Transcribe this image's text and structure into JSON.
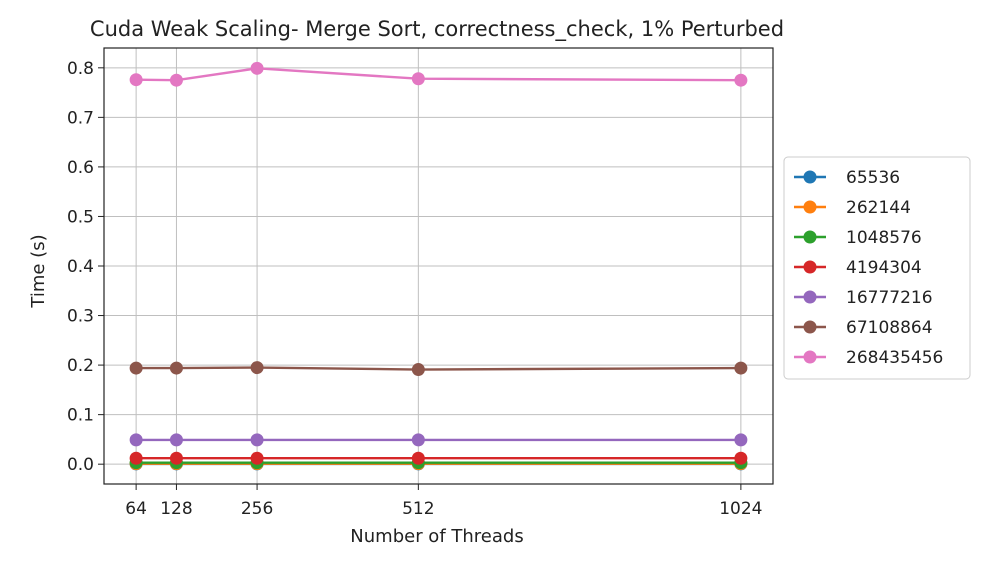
{
  "chart_data": {
    "type": "line",
    "title": "Cuda Weak Scaling- Merge Sort, correctness_check, 1% Perturbed",
    "xlabel": "Number of Threads",
    "ylabel": "Time (s)",
    "x": [
      64,
      128,
      256,
      512,
      1024
    ],
    "x_tick_labels": [
      "64",
      "128",
      "256",
      "512",
      "1024"
    ],
    "xlim": [
      13,
      1075
    ],
    "ylim": [
      -0.04,
      0.84
    ],
    "y_ticks": [
      0.0,
      0.1,
      0.2,
      0.3,
      0.4,
      0.5,
      0.6,
      0.7,
      0.8
    ],
    "y_tick_labels": [
      "0.0",
      "0.1",
      "0.2",
      "0.3",
      "0.4",
      "0.5",
      "0.6",
      "0.7",
      "0.8"
    ],
    "grid": true,
    "legend_position": "right",
    "series": [
      {
        "name": "65536",
        "color": "#1f77b4",
        "values": [
          0.0006,
          0.0006,
          0.0006,
          0.0006,
          0.0006
        ]
      },
      {
        "name": "262144",
        "color": "#ff7f0e",
        "values": [
          0.0011,
          0.0011,
          0.0011,
          0.0011,
          0.0011
        ]
      },
      {
        "name": "1048576",
        "color": "#2ca02c",
        "values": [
          0.003,
          0.003,
          0.003,
          0.003,
          0.003
        ]
      },
      {
        "name": "4194304",
        "color": "#d62728",
        "values": [
          0.012,
          0.012,
          0.012,
          0.012,
          0.012
        ]
      },
      {
        "name": "16777216",
        "color": "#9467bd",
        "values": [
          0.049,
          0.049,
          0.049,
          0.049,
          0.049
        ]
      },
      {
        "name": "67108864",
        "color": "#8c564b",
        "values": [
          0.194,
          0.194,
          0.195,
          0.191,
          0.194
        ]
      },
      {
        "name": "268435456",
        "color": "#e377c2",
        "values": [
          0.776,
          0.775,
          0.799,
          0.778,
          0.775
        ]
      }
    ]
  }
}
